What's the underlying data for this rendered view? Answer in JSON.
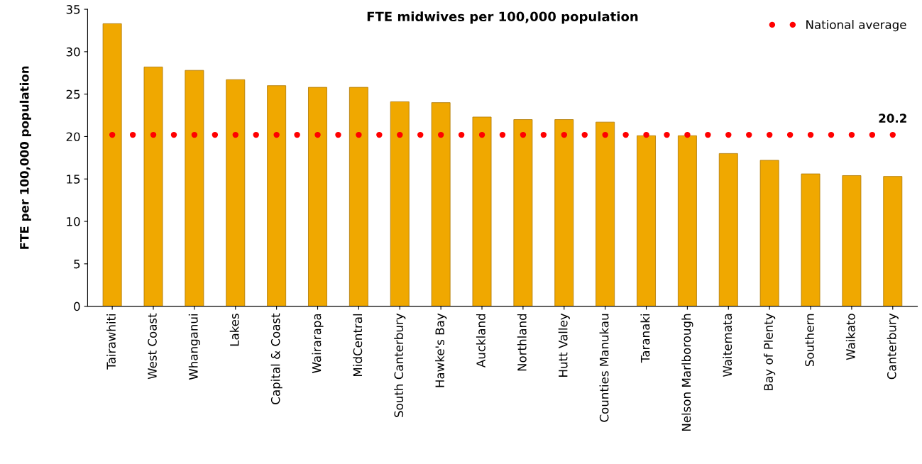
{
  "chart_data": {
    "type": "bar",
    "title": "FTE midwives per 100,000 population",
    "ylabel": "FTE per 100,000 population",
    "categories": [
      "Tairawhiti",
      "West Coast",
      "Whanganui",
      "Lakes",
      "Capital & Coast",
      "Wairarapa",
      "MidCentral",
      "South Canterbury",
      "Hawke's Bay",
      "Auckland",
      "Northland",
      "Hutt Valley",
      "Counties Manukau",
      "Taranaki",
      "Nelson Marlborough",
      "Waitemata",
      "Bay of Plenty",
      "Southern",
      "Waikato",
      "Canterbury"
    ],
    "series": [
      {
        "color": "#f0a800",
        "values": [
          33.3,
          28.2,
          27.8,
          26.7,
          26.0,
          25.8,
          25.8,
          24.1,
          24.0,
          22.3,
          22.0,
          22.0,
          21.7,
          20.1,
          20.1,
          18.0,
          17.2,
          15.6,
          15.4,
          15.3
        ]
      },
      {
        "type": "line",
        "name": "National average",
        "color": "#ff0000",
        "line_style": "dotted",
        "values": [
          20.2,
          20.2,
          20.2,
          20.2,
          20.2,
          20.2,
          20.2,
          20.2,
          20.2,
          20.2,
          20.2,
          20.2,
          20.2,
          20.2,
          20.2,
          20.2,
          20.2,
          20.2,
          20.2,
          20.2
        ],
        "value_labels": [
          null,
          null,
          null,
          null,
          null,
          null,
          null,
          null,
          null,
          null,
          null,
          null,
          null,
          null,
          null,
          null,
          null,
          null,
          null,
          "20.2"
        ]
      }
    ],
    "ylim": [
      0,
      35
    ],
    "yticks": [
      0,
      5,
      10,
      15,
      20,
      25,
      30,
      35
    ],
    "grid": false,
    "legend": "top right"
  }
}
